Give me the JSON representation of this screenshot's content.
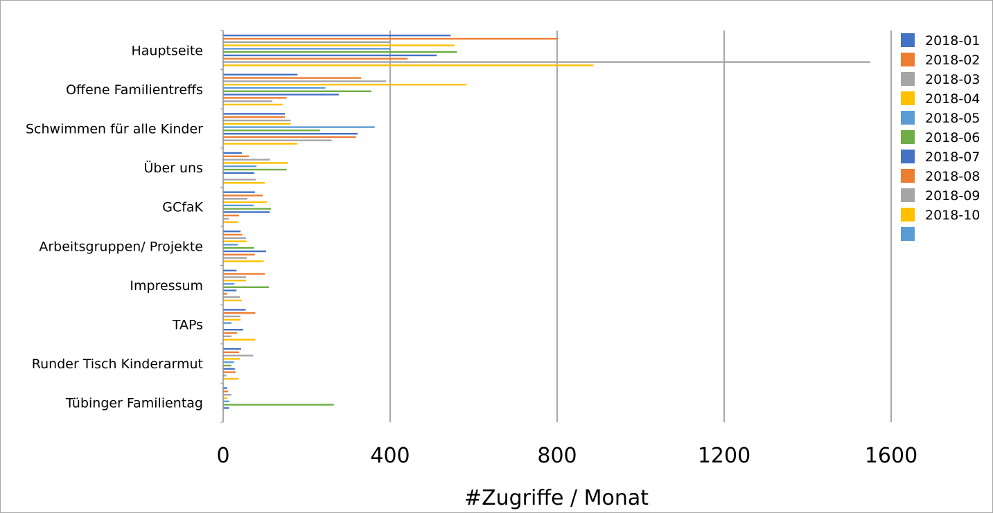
{
  "chart_data": {
    "type": "bar",
    "orientation": "horizontal",
    "title": "",
    "xlabel": "#Zugriffe / Monat",
    "ylabel": "",
    "xlim": [
      0,
      1600
    ],
    "xticks": [
      "0",
      "400",
      "800",
      "1200",
      "1600"
    ],
    "grid": "vertical major gridlines",
    "legend_position": "right",
    "categories": [
      "Hauptseite",
      "Offene Familientreffs",
      "Schwimmen für alle Kinder",
      "Über uns",
      "GCfaK",
      "Arbeitsgruppen/ Projekte",
      "Impressum",
      "TAPs",
      "Runder Tisch Kinderarmut",
      "Tübinger Familientag"
    ],
    "series": [
      {
        "name": "2018-01",
        "color": "#4472C4",
        "values": [
          545,
          178,
          148,
          45,
          76,
          42,
          32,
          54,
          43,
          10
        ]
      },
      {
        "name": "2018-02",
        "color": "#ED7D31",
        "values": [
          802,
          331,
          148,
          62,
          95,
          46,
          100,
          77,
          38,
          12
        ]
      },
      {
        "name": "2018-03",
        "color": "#A5A5A5",
        "values": [
          400,
          390,
          162,
          112,
          58,
          55,
          55,
          41,
          72,
          20
        ]
      },
      {
        "name": "2018-04",
        "color": "#FFC000",
        "values": [
          555,
          583,
          162,
          155,
          105,
          56,
          55,
          42,
          40,
          10
        ]
      },
      {
        "name": "2018-05",
        "color": "#5B9BD5",
        "values": [
          400,
          245,
          363,
          80,
          73,
          35,
          27,
          20,
          26,
          15
        ]
      },
      {
        "name": "2018-06",
        "color": "#70AD47",
        "values": [
          560,
          355,
          232,
          152,
          115,
          74,
          110,
          0,
          20,
          265
        ]
      },
      {
        "name": "2018-07",
        "color": "#4472C4",
        "values": [
          512,
          277,
          322,
          75,
          112,
          103,
          32,
          48,
          28,
          14
        ]
      },
      {
        "name": "2018-08",
        "color": "#ED7D31",
        "values": [
          442,
          152,
          318,
          0,
          38,
          76,
          10,
          33,
          30,
          0
        ]
      },
      {
        "name": "2018-09",
        "color": "#A5A5A5",
        "values": [
          1550,
          118,
          260,
          78,
          14,
          57,
          40,
          20,
          8,
          0
        ]
      },
      {
        "name": "2018-10",
        "color": "#FFC000",
        "values": [
          887,
          143,
          178,
          100,
          36,
          97,
          45,
          77,
          37,
          0
        ]
      },
      {
        "name": "",
        "color": "#5B9BD5",
        "values": [
          0,
          0,
          0,
          0,
          0,
          0,
          0,
          0,
          0,
          0
        ]
      }
    ]
  }
}
